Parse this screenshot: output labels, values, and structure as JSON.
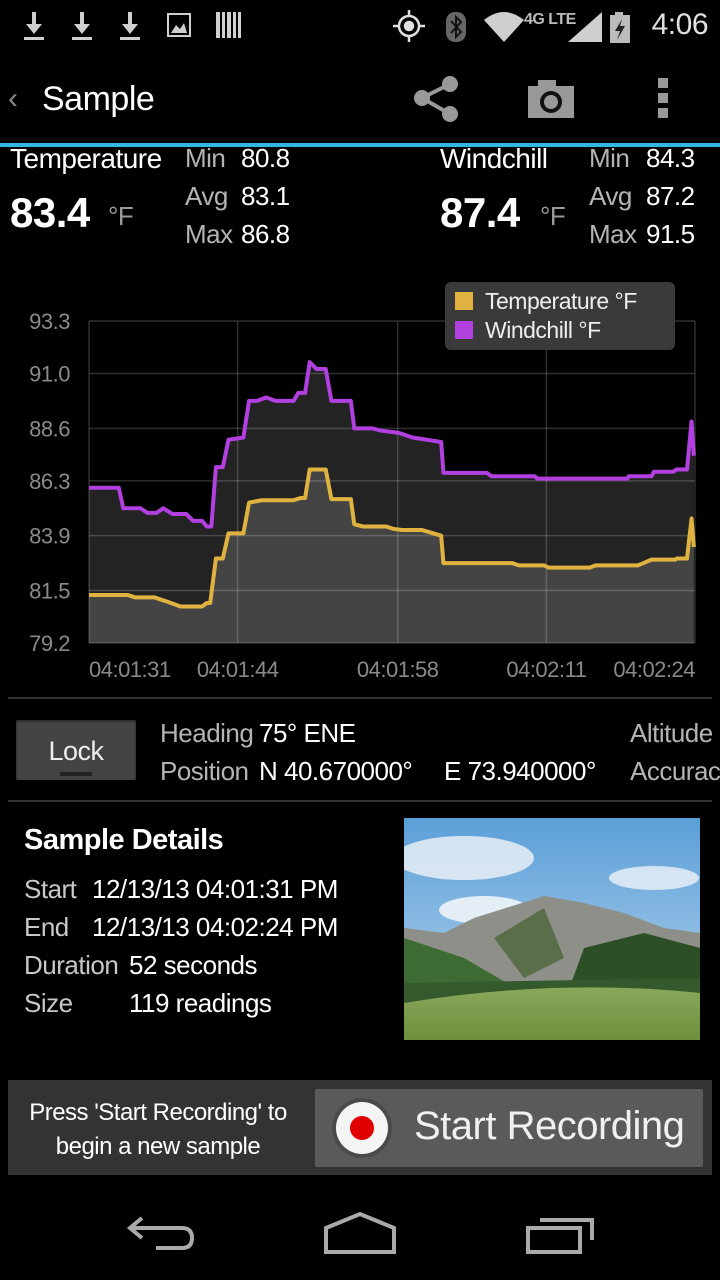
{
  "status_bar": {
    "time": "4:06",
    "network": "4G LTE",
    "icons": [
      "download-icon",
      "download-icon",
      "download-icon",
      "image-icon",
      "barcode-icon",
      "gps-icon",
      "bluetooth-icon",
      "wifi-icon",
      "signal-icon",
      "battery-charging-icon"
    ]
  },
  "action_bar": {
    "title": "Sample",
    "actions": [
      "share-icon",
      "camera-icon",
      "overflow-menu-icon"
    ]
  },
  "stats": {
    "temperature": {
      "label": "Temperature",
      "value": "83.4",
      "unit": "°F",
      "min_label": "Min",
      "min": "80.8",
      "avg_label": "Avg",
      "avg": "83.1",
      "max_label": "Max",
      "max": "86.8"
    },
    "windchill": {
      "label": "Windchill",
      "value": "87.4",
      "unit": "°F",
      "min_label": "Min",
      "min": "84.3",
      "avg_label": "Avg",
      "avg": "87.2",
      "max_label": "Max",
      "max": "91.5"
    }
  },
  "chart_data": {
    "type": "line",
    "y_ticks": [
      "93.3",
      "91.0",
      "88.6",
      "86.3",
      "83.9",
      "81.5",
      "79.2"
    ],
    "ylim": [
      79.2,
      93.3
    ],
    "x_ticks": [
      "04:01:31",
      "04:01:44",
      "04:01:58",
      "04:02:11",
      "04:02:24"
    ],
    "xlim": [
      "04:01:31",
      "04:02:24"
    ],
    "grid": true,
    "legend_placement": "top-right",
    "series": [
      {
        "name": "Temperature °F",
        "color": "#e0b341",
        "fill": "#444444",
        "points": [
          [
            "04:01:31.0",
            81.3
          ],
          [
            "04:01:34.4",
            81.3
          ],
          [
            "04:01:35.0",
            81.2
          ],
          [
            "04:01:36.7",
            81.2
          ],
          [
            "04:01:37.3",
            81.1
          ],
          [
            "04:01:37.9",
            81.0
          ],
          [
            "04:01:39.0",
            80.8
          ],
          [
            "04:01:40.9",
            80.8
          ],
          [
            "04:01:41.3",
            80.95
          ],
          [
            "04:01:41.6",
            80.95
          ],
          [
            "04:01:42.1",
            82.9
          ],
          [
            "04:01:42.7",
            82.9
          ],
          [
            "04:01:43.2",
            84.0
          ],
          [
            "04:01:44.5",
            84.0
          ],
          [
            "04:01:45.0",
            85.35
          ],
          [
            "04:01:46.1",
            85.45
          ],
          [
            "04:01:48.9",
            85.45
          ],
          [
            "04:01:49.5",
            85.55
          ],
          [
            "04:01:49.9",
            85.55
          ],
          [
            "04:01:50.3",
            86.8
          ],
          [
            "04:01:51.7",
            86.8
          ],
          [
            "04:01:52.2",
            85.5
          ],
          [
            "04:01:53.9",
            85.5
          ],
          [
            "04:01:54.2",
            84.4
          ],
          [
            "04:01:55.0",
            84.3
          ],
          [
            "04:01:57.0",
            84.3
          ],
          [
            "04:01:57.6",
            84.2
          ],
          [
            "04:01:58.4",
            84.15
          ],
          [
            "04:02:00.1",
            84.15
          ],
          [
            "04:02:01.8",
            83.9
          ],
          [
            "04:02:02.0",
            82.7
          ],
          [
            "04:02:08.0",
            82.7
          ],
          [
            "04:02:08.6",
            82.6
          ],
          [
            "04:02:10.8",
            82.6
          ],
          [
            "04:02:11.2",
            82.5
          ],
          [
            "04:02:14.8",
            82.5
          ],
          [
            "04:02:15.3",
            82.6
          ],
          [
            "04:02:19.0",
            82.6
          ],
          [
            "04:02:19.5",
            82.7
          ],
          [
            "04:02:20.2",
            82.85
          ],
          [
            "04:02:22.3",
            82.85
          ],
          [
            "04:02:22.4",
            82.9
          ],
          [
            "04:02:23.3",
            82.9
          ],
          [
            "04:02:23.7",
            84.65
          ],
          [
            "04:02:23.9",
            83.4
          ]
        ]
      },
      {
        "name": "Windchill °F",
        "color": "#b23fe0",
        "fill": "#232323",
        "points": [
          [
            "04:01:31.0",
            86.0
          ],
          [
            "04:01:33.6",
            86.0
          ],
          [
            "04:01:34.0",
            85.1
          ],
          [
            "04:01:35.5",
            85.1
          ],
          [
            "04:01:36.1",
            84.9
          ],
          [
            "04:01:36.9",
            84.9
          ],
          [
            "04:01:37.5",
            85.1
          ],
          [
            "04:01:38.3",
            84.85
          ],
          [
            "04:01:39.5",
            84.85
          ],
          [
            "04:01:40.1",
            84.55
          ],
          [
            "04:01:40.9",
            84.55
          ],
          [
            "04:01:41.3",
            84.3
          ],
          [
            "04:01:41.7",
            84.3
          ],
          [
            "04:01:42.1",
            86.9
          ],
          [
            "04:01:42.7",
            86.9
          ],
          [
            "04:01:43.2",
            88.1
          ],
          [
            "04:01:44.5",
            88.2
          ],
          [
            "04:01:45.0",
            89.8
          ],
          [
            "04:01:45.7",
            89.8
          ],
          [
            "04:01:46.5",
            89.95
          ],
          [
            "04:01:47.3",
            89.8
          ],
          [
            "04:01:48.9",
            89.8
          ],
          [
            "04:01:49.3",
            90.15
          ],
          [
            "04:01:49.9",
            90.15
          ],
          [
            "04:01:50.3",
            91.5
          ],
          [
            "04:01:50.9",
            91.2
          ],
          [
            "04:01:51.7",
            91.2
          ],
          [
            "04:01:52.2",
            89.8
          ],
          [
            "04:01:53.9",
            89.8
          ],
          [
            "04:01:54.2",
            88.6
          ],
          [
            "04:01:55.8",
            88.6
          ],
          [
            "04:01:56.5",
            88.5
          ],
          [
            "04:01:58.1",
            88.4
          ],
          [
            "04:01:59.3",
            88.2
          ],
          [
            "04:02:01.8",
            88.0
          ],
          [
            "04:02:02.0",
            86.65
          ],
          [
            "04:02:05.8",
            86.65
          ],
          [
            "04:02:06.2",
            86.5
          ],
          [
            "04:02:10.0",
            86.5
          ],
          [
            "04:02:10.2",
            86.4
          ],
          [
            "04:02:18.1",
            86.4
          ],
          [
            "04:02:18.2",
            86.5
          ],
          [
            "04:02:20.2",
            86.5
          ],
          [
            "04:02:20.4",
            86.7
          ],
          [
            "04:02:22.1",
            86.7
          ],
          [
            "04:02:22.4",
            86.8
          ],
          [
            "04:02:23.3",
            86.8
          ],
          [
            "04:02:23.7",
            88.9
          ],
          [
            "04:02:23.9",
            87.4
          ]
        ]
      }
    ]
  },
  "location": {
    "lock_label": "Lock",
    "heading_label": "Heading",
    "heading": "75° ENE",
    "position_label": "Position",
    "position_lat": "N 40.670000°",
    "position_lon": "E 73.940000°",
    "altitude_label": "Altitude",
    "accuracy_label": "Accurac"
  },
  "details": {
    "title": "Sample Details",
    "start_label": "Start",
    "start": "12/13/13 04:01:31 PM",
    "end_label": "End",
    "end": "12/13/13 04:02:24 PM",
    "duration_label": "Duration",
    "duration": "52 seconds",
    "size_label": "Size",
    "size": "119 readings"
  },
  "recording": {
    "prompt_line1": "Press 'Start Recording' to",
    "prompt_line2": "begin a new sample",
    "button_label": "Start Recording",
    "record_color": "#e00000"
  },
  "nav_bar": {
    "buttons": [
      "back-icon",
      "home-icon",
      "recent-apps-icon"
    ]
  },
  "colors": {
    "accent": "#33b5e5"
  }
}
